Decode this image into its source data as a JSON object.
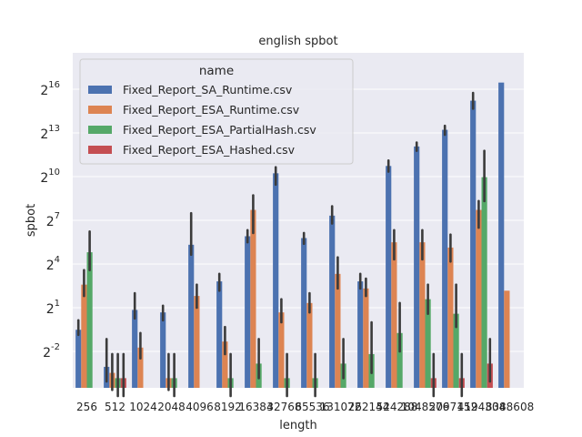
{
  "chart_data": {
    "type": "bar",
    "title": "english spbot",
    "xlabel": "length",
    "ylabel": "spbot",
    "y_scale": "log2",
    "ylim_exponent": [
      -4.5,
      18.5
    ],
    "y_ticks": [
      {
        "base": "2",
        "exp": "-2",
        "value": 0.25
      },
      {
        "base": "2",
        "exp": "1",
        "value": 2
      },
      {
        "base": "2",
        "exp": "4",
        "value": 16
      },
      {
        "base": "2",
        "exp": "7",
        "value": 128
      },
      {
        "base": "2",
        "exp": "10",
        "value": 1024
      },
      {
        "base": "2",
        "exp": "13",
        "value": 8192
      },
      {
        "base": "2",
        "exp": "16",
        "value": 65536
      }
    ],
    "grid": true,
    "legend": {
      "title": "name",
      "placement": "top-left"
    },
    "categories": [
      "256",
      "512",
      "1024",
      "2048",
      "4096",
      "8192",
      "16384",
      "32768",
      "65536",
      "131072",
      "262144",
      "524288",
      "1048576",
      "2097152",
      "4194304",
      "8388608"
    ],
    "series": [
      {
        "name": "Fixed_Report_SA_Runtime.csv",
        "color": "#4c72b0",
        "values": [
          0.7,
          0.12,
          1.8,
          1.6,
          40,
          7,
          60,
          1200,
          55,
          160,
          7,
          1700,
          4300,
          9500,
          38000,
          90000
        ],
        "err_low": [
          0.55,
          0.06,
          1.2,
          1.1,
          25,
          4.5,
          45,
          700,
          42,
          110,
          5,
          1300,
          3500,
          7500,
          26000,
          null
        ],
        "err_high": [
          1.1,
          0.45,
          4,
          2.2,
          180,
          10,
          80,
          1600,
          70,
          250,
          10,
          2200,
          5200,
          11500,
          55000,
          null
        ]
      },
      {
        "name": "Fixed_Report_ESA_Runtime.csv",
        "color": "#dd8452",
        "values": [
          6,
          0.09,
          0.3,
          0.07,
          3.5,
          0.4,
          210,
          1.6,
          2.5,
          10,
          5,
          45,
          45,
          35,
          210,
          4.5
        ],
        "err_low": [
          3.5,
          0.04,
          0.18,
          0.04,
          2,
          0.22,
          70,
          1,
          1.6,
          5,
          3.5,
          20,
          20,
          18,
          90,
          null
        ],
        "err_high": [
          12,
          0.22,
          0.6,
          0.22,
          6,
          0.8,
          420,
          3,
          4,
          22,
          8,
          80,
          80,
          65,
          320,
          null
        ],
        "missing": [
          "8192-none"
        ]
      },
      {
        "name": "Fixed_Report_ESA_PartialHash.csv",
        "color": "#55a868",
        "values": [
          28,
          0.07,
          null,
          0.07,
          null,
          0.07,
          0.14,
          0.07,
          0.07,
          0.14,
          0.22,
          0.6,
          3,
          1.5,
          1000,
          null
        ],
        "err_low": [
          12,
          0.03,
          null,
          0.03,
          null,
          0.03,
          0.07,
          0.03,
          0.03,
          0.07,
          0.09,
          0.25,
          1.5,
          0.8,
          320,
          null
        ],
        "err_high": [
          75,
          0.22,
          null,
          0.22,
          null,
          0.22,
          0.45,
          0.22,
          0.22,
          0.45,
          1,
          2.5,
          6,
          6,
          3500,
          null
        ]
      },
      {
        "name": "Fixed_Report_ESA_Hashed.csv",
        "color": "#c44e52",
        "values": [
          null,
          0.07,
          null,
          null,
          null,
          null,
          null,
          null,
          null,
          null,
          null,
          null,
          0.07,
          0.07,
          0.14,
          null
        ],
        "err_low": [
          null,
          0.03,
          null,
          null,
          null,
          null,
          null,
          null,
          null,
          null,
          null,
          null,
          0.03,
          0.03,
          0.06,
          null
        ],
        "err_high": [
          null,
          0.22,
          null,
          null,
          null,
          null,
          null,
          null,
          null,
          null,
          null,
          null,
          0.22,
          0.22,
          0.45,
          null
        ]
      }
    ]
  }
}
